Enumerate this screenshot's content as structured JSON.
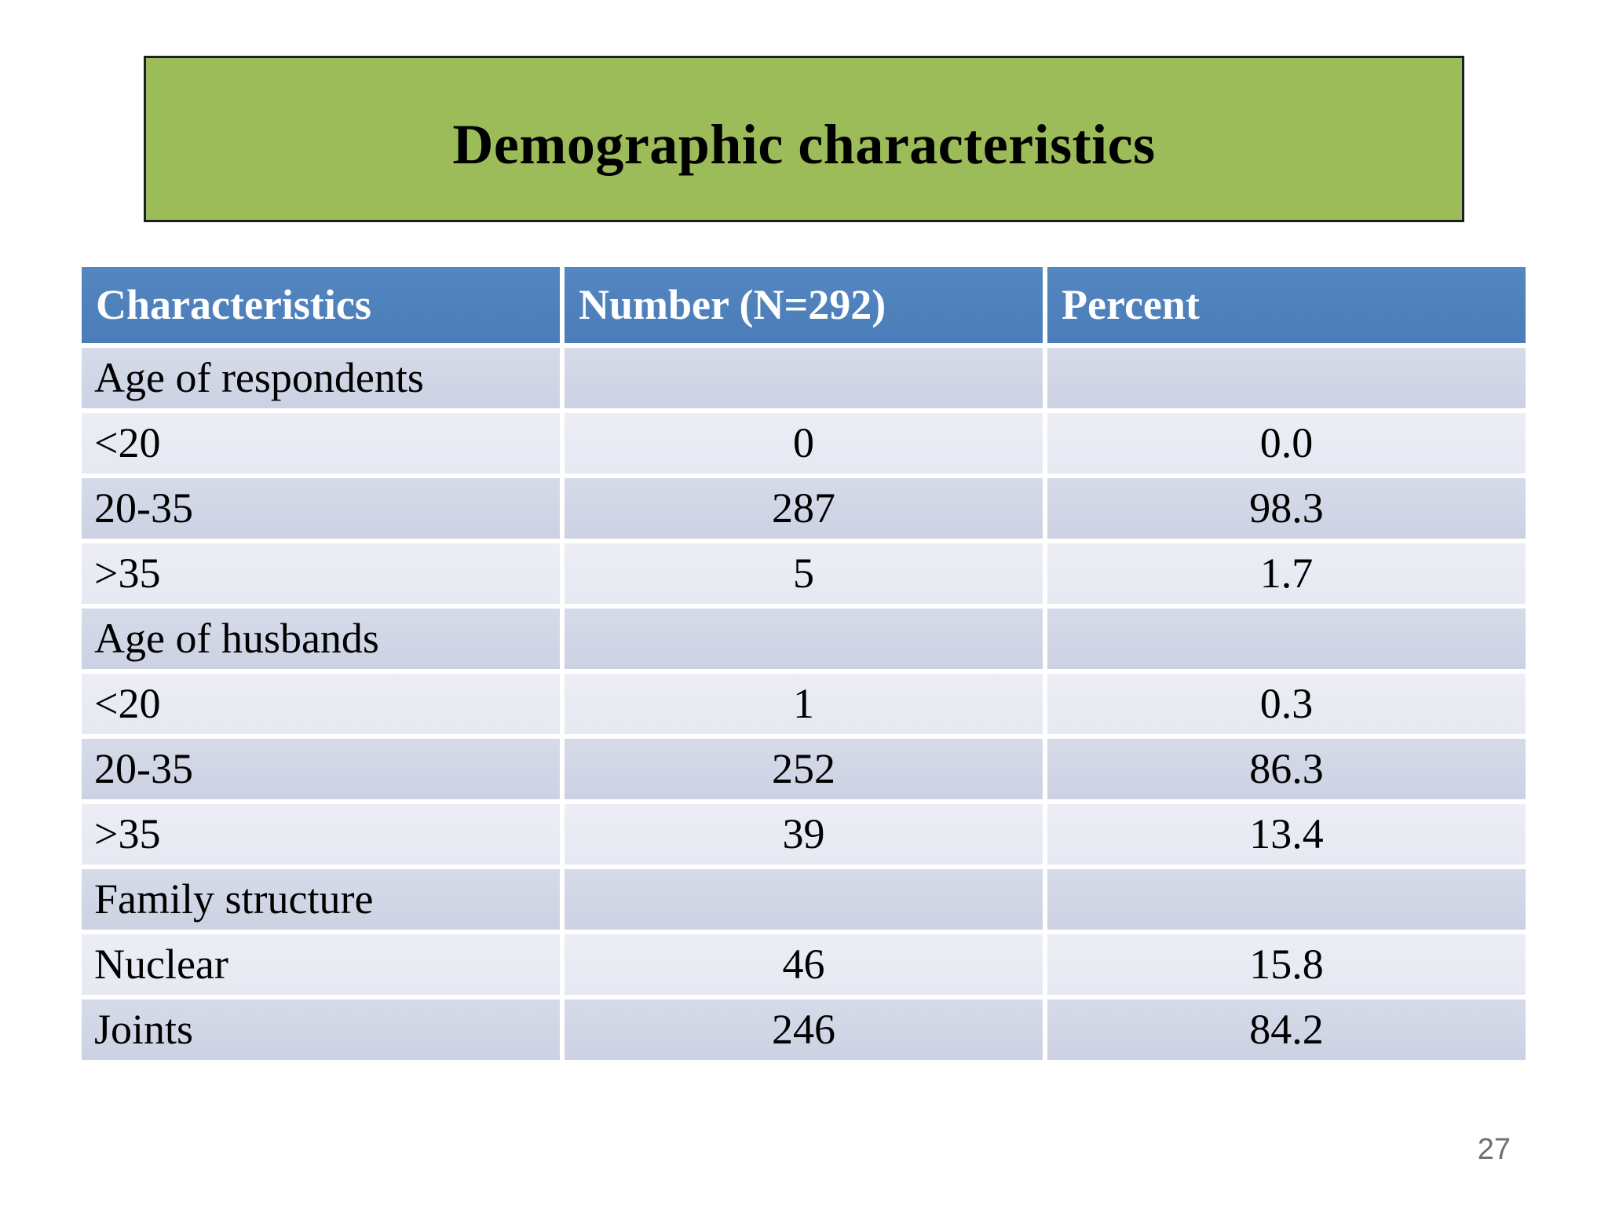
{
  "title": "Demographic characteristics",
  "page_number": "27",
  "colors": {
    "banner_green": "#9CBB59",
    "banner_border": "#1E1E1E",
    "header_blue": "#4C80BC",
    "band_dark": "#D0D6E6",
    "band_light": "#E9EBF4",
    "header_text": "#FFFFFF",
    "body_text": "#000000",
    "page_number_gray": "#6E6E6E"
  },
  "table": {
    "headers": [
      "Characteristics",
      "Number (N=292)",
      "Percent"
    ],
    "rows": [
      {
        "label": "Age of respondents",
        "number": "",
        "percent": "",
        "section": true
      },
      {
        "label": "<20",
        "number": "0",
        "percent": "0.0"
      },
      {
        "label": "20-35",
        "number": "287",
        "percent": "98.3"
      },
      {
        "label": ">35",
        "number": "5",
        "percent": "1.7"
      },
      {
        "label": "Age of husbands",
        "number": "",
        "percent": "",
        "section": true
      },
      {
        "label": "<20",
        "number": "1",
        "percent": "0.3"
      },
      {
        "label": "20-35",
        "number": "252",
        "percent": "86.3"
      },
      {
        "label": ">35",
        "number": "39",
        "percent": "13.4"
      },
      {
        "label": "Family structure",
        "number": "",
        "percent": "",
        "section": true
      },
      {
        "label": "Nuclear",
        "number": "46",
        "percent": "15.8"
      },
      {
        "label": "Joints",
        "number": "246",
        "percent": "84.2"
      }
    ]
  },
  "chart_data": {
    "type": "table",
    "title": "Demographic characteristics",
    "columns": [
      "Characteristics",
      "Number (N=292)",
      "Percent"
    ],
    "sections": [
      {
        "name": "Age of respondents",
        "rows": [
          {
            "category": "<20",
            "number": 0,
            "percent": 0.0
          },
          {
            "category": "20-35",
            "number": 287,
            "percent": 98.3
          },
          {
            "category": ">35",
            "number": 5,
            "percent": 1.7
          }
        ]
      },
      {
        "name": "Age of husbands",
        "rows": [
          {
            "category": "<20",
            "number": 1,
            "percent": 0.3
          },
          {
            "category": "20-35",
            "number": 252,
            "percent": 86.3
          },
          {
            "category": ">35",
            "number": 39,
            "percent": 13.4
          }
        ]
      },
      {
        "name": "Family structure",
        "rows": [
          {
            "category": "Nuclear",
            "number": 46,
            "percent": 15.8
          },
          {
            "category": "Joints",
            "number": 246,
            "percent": 84.2
          }
        ]
      }
    ],
    "total_n": 292
  }
}
